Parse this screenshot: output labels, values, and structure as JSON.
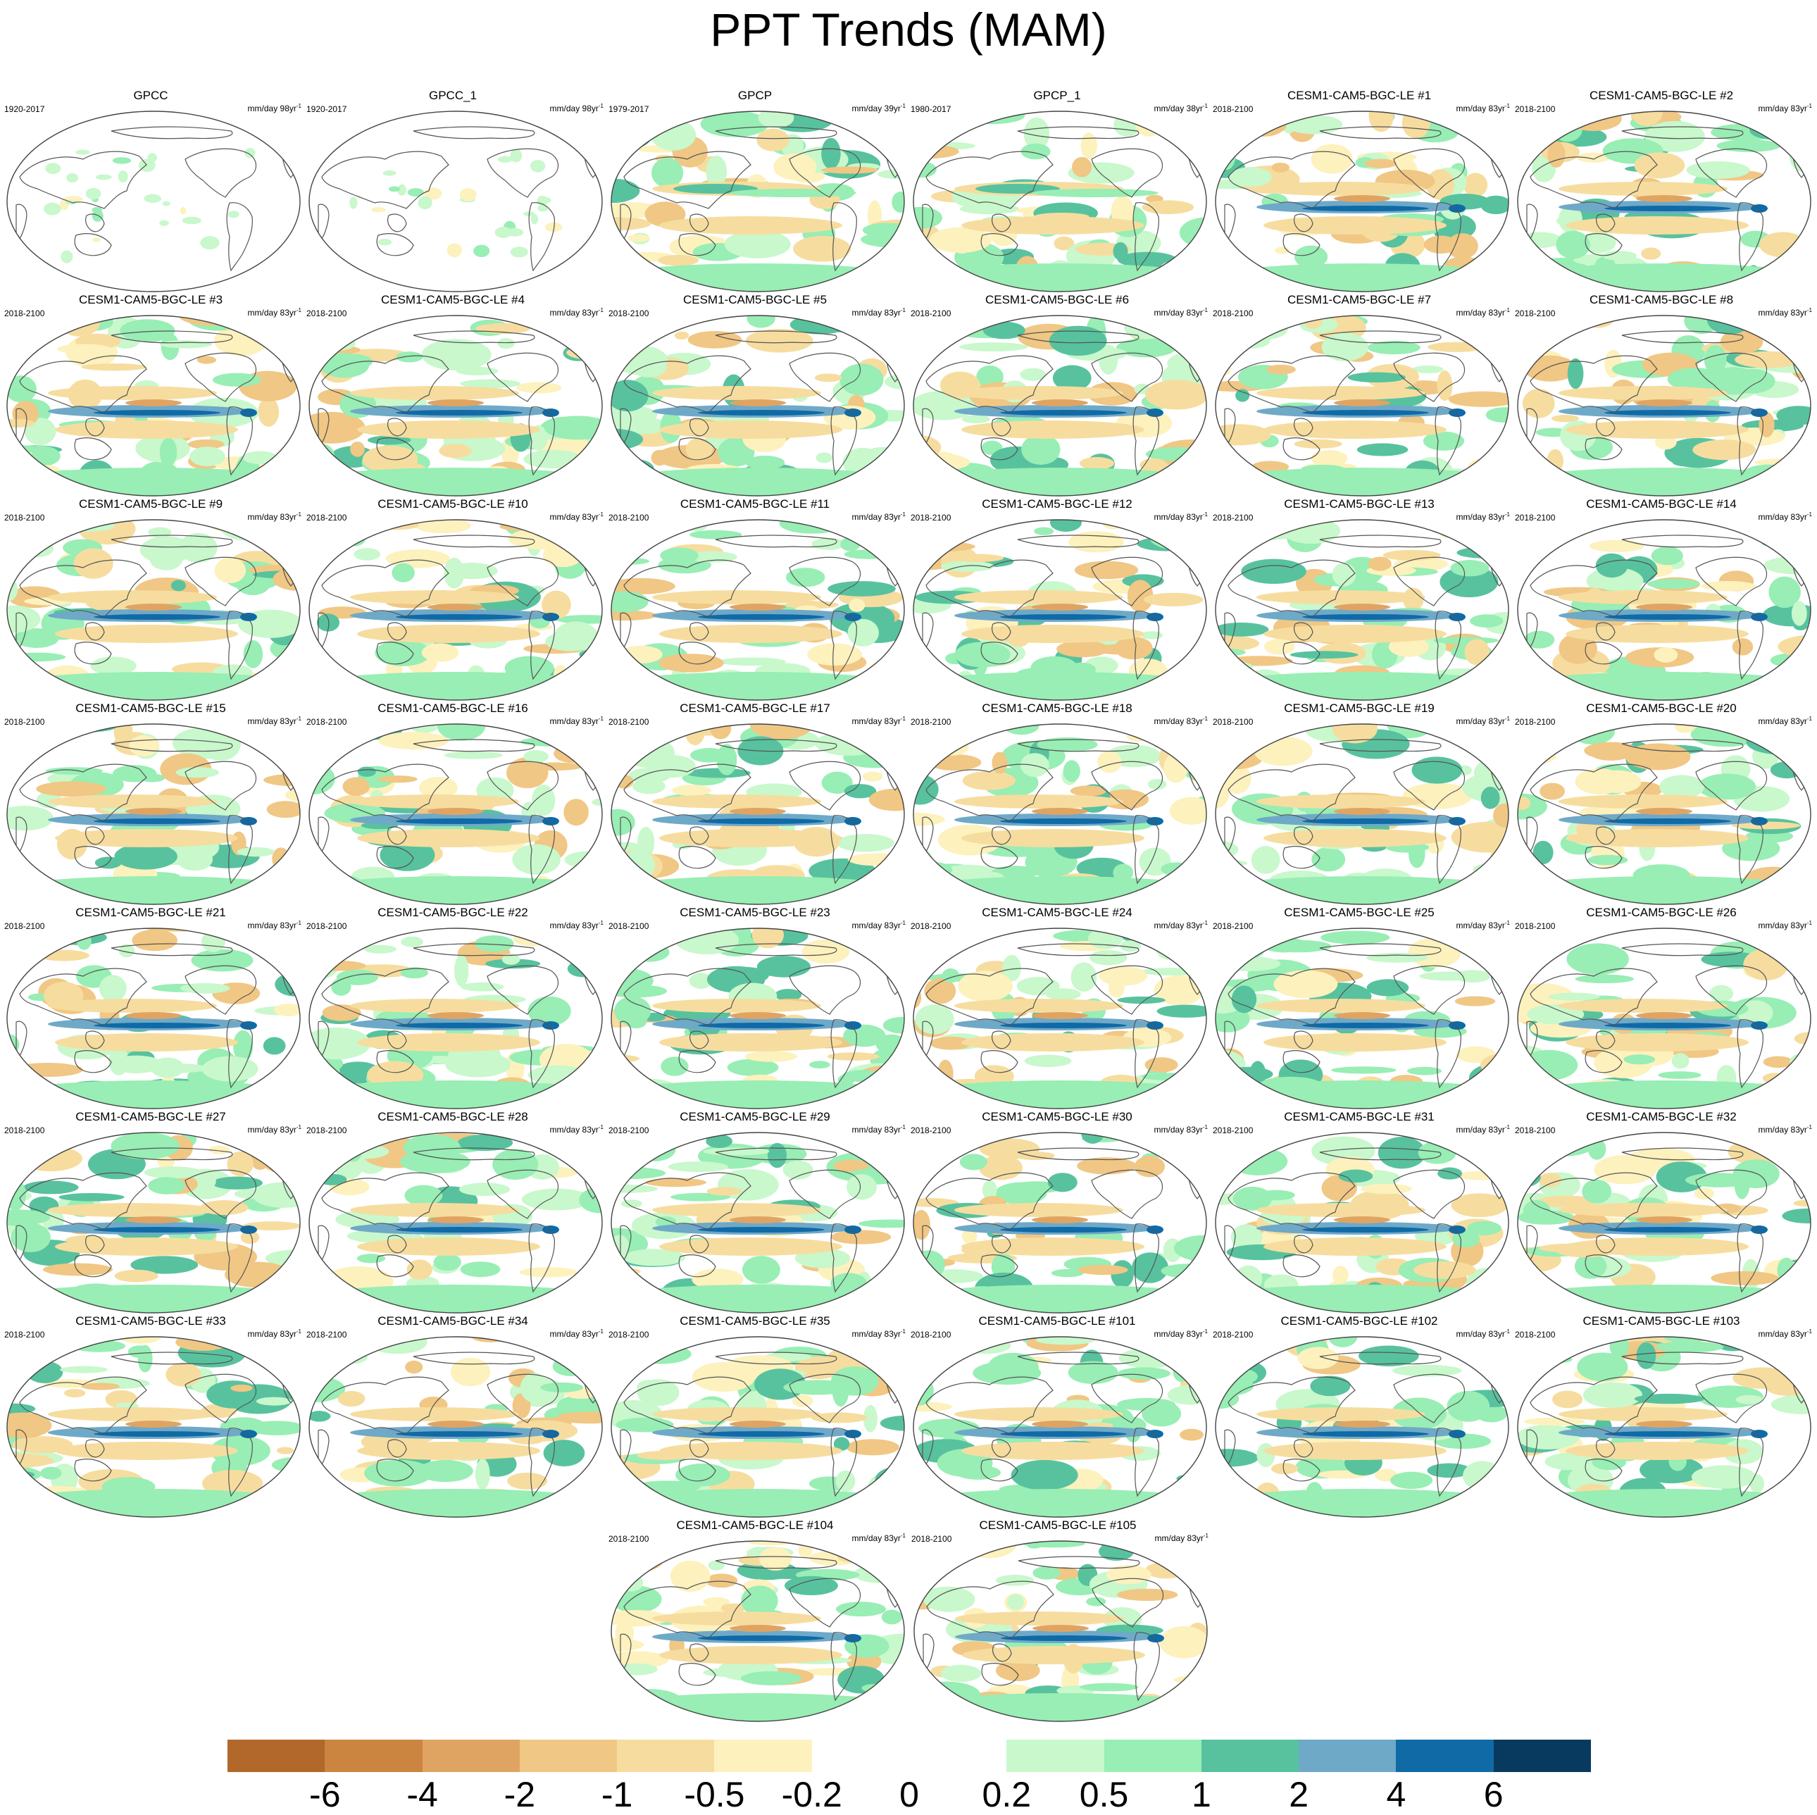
{
  "figure": {
    "title": "PPT Trends (MAM)",
    "colors": {
      "land_outline": "#555555",
      "map_border": "#444444",
      "background": "#ffffff"
    }
  },
  "panels": [
    {
      "name": "GPCC",
      "period": "1920-2017",
      "units": "mm/day 98yr",
      "units_exp": "-1",
      "type": "gauge"
    },
    {
      "name": "GPCC_1",
      "period": "1920-2017",
      "units": "mm/day 98yr",
      "units_exp": "-1",
      "type": "gauge"
    },
    {
      "name": "GPCP",
      "period": "1979-2017",
      "units": "mm/day 39yr",
      "units_exp": "-1",
      "type": "satellite"
    },
    {
      "name": "GPCP_1",
      "period": "1980-2017",
      "units": "mm/day 38yr",
      "units_exp": "-1",
      "type": "satellite"
    },
    {
      "name": "CESM1-CAM5-BGC-LE #1",
      "period": "2018-2100",
      "units": "mm/day 83yr",
      "units_exp": "-1",
      "type": "model"
    },
    {
      "name": "CESM1-CAM5-BGC-LE #2",
      "period": "2018-2100",
      "units": "mm/day 83yr",
      "units_exp": "-1",
      "type": "model"
    },
    {
      "name": "CESM1-CAM5-BGC-LE #3",
      "period": "2018-2100",
      "units": "mm/day 83yr",
      "units_exp": "-1",
      "type": "model"
    },
    {
      "name": "CESM1-CAM5-BGC-LE #4",
      "period": "2018-2100",
      "units": "mm/day 83yr",
      "units_exp": "-1",
      "type": "model"
    },
    {
      "name": "CESM1-CAM5-BGC-LE #5",
      "period": "2018-2100",
      "units": "mm/day 83yr",
      "units_exp": "-1",
      "type": "model"
    },
    {
      "name": "CESM1-CAM5-BGC-LE #6",
      "period": "2018-2100",
      "units": "mm/day 83yr",
      "units_exp": "-1",
      "type": "model"
    },
    {
      "name": "CESM1-CAM5-BGC-LE #7",
      "period": "2018-2100",
      "units": "mm/day 83yr",
      "units_exp": "-1",
      "type": "model"
    },
    {
      "name": "CESM1-CAM5-BGC-LE #8",
      "period": "2018-2100",
      "units": "mm/day 83yr",
      "units_exp": "-1",
      "type": "model"
    },
    {
      "name": "CESM1-CAM5-BGC-LE #9",
      "period": "2018-2100",
      "units": "mm/day 83yr",
      "units_exp": "-1",
      "type": "model"
    },
    {
      "name": "CESM1-CAM5-BGC-LE #10",
      "period": "2018-2100",
      "units": "mm/day 83yr",
      "units_exp": "-1",
      "type": "model"
    },
    {
      "name": "CESM1-CAM5-BGC-LE #11",
      "period": "2018-2100",
      "units": "mm/day 83yr",
      "units_exp": "-1",
      "type": "model"
    },
    {
      "name": "CESM1-CAM5-BGC-LE #12",
      "period": "2018-2100",
      "units": "mm/day 83yr",
      "units_exp": "-1",
      "type": "model"
    },
    {
      "name": "CESM1-CAM5-BGC-LE #13",
      "period": "2018-2100",
      "units": "mm/day 83yr",
      "units_exp": "-1",
      "type": "model"
    },
    {
      "name": "CESM1-CAM5-BGC-LE #14",
      "period": "2018-2100",
      "units": "mm/day 83yr",
      "units_exp": "-1",
      "type": "model"
    },
    {
      "name": "CESM1-CAM5-BGC-LE #15",
      "period": "2018-2100",
      "units": "mm/day 83yr",
      "units_exp": "-1",
      "type": "model"
    },
    {
      "name": "CESM1-CAM5-BGC-LE #16",
      "period": "2018-2100",
      "units": "mm/day 83yr",
      "units_exp": "-1",
      "type": "model"
    },
    {
      "name": "CESM1-CAM5-BGC-LE #17",
      "period": "2018-2100",
      "units": "mm/day 83yr",
      "units_exp": "-1",
      "type": "model"
    },
    {
      "name": "CESM1-CAM5-BGC-LE #18",
      "period": "2018-2100",
      "units": "mm/day 83yr",
      "units_exp": "-1",
      "type": "model"
    },
    {
      "name": "CESM1-CAM5-BGC-LE #19",
      "period": "2018-2100",
      "units": "mm/day 83yr",
      "units_exp": "-1",
      "type": "model"
    },
    {
      "name": "CESM1-CAM5-BGC-LE #20",
      "period": "2018-2100",
      "units": "mm/day 83yr",
      "units_exp": "-1",
      "type": "model"
    },
    {
      "name": "CESM1-CAM5-BGC-LE #21",
      "period": "2018-2100",
      "units": "mm/day 83yr",
      "units_exp": "-1",
      "type": "model"
    },
    {
      "name": "CESM1-CAM5-BGC-LE #22",
      "period": "2018-2100",
      "units": "mm/day 83yr",
      "units_exp": "-1",
      "type": "model"
    },
    {
      "name": "CESM1-CAM5-BGC-LE #23",
      "period": "2018-2100",
      "units": "mm/day 83yr",
      "units_exp": "-1",
      "type": "model"
    },
    {
      "name": "CESM1-CAM5-BGC-LE #24",
      "period": "2018-2100",
      "units": "mm/day 83yr",
      "units_exp": "-1",
      "type": "model"
    },
    {
      "name": "CESM1-CAM5-BGC-LE #25",
      "period": "2018-2100",
      "units": "mm/day 83yr",
      "units_exp": "-1",
      "type": "model"
    },
    {
      "name": "CESM1-CAM5-BGC-LE #26",
      "period": "2018-2100",
      "units": "mm/day 83yr",
      "units_exp": "-1",
      "type": "model"
    },
    {
      "name": "CESM1-CAM5-BGC-LE #27",
      "period": "2018-2100",
      "units": "mm/day 83yr",
      "units_exp": "-1",
      "type": "model"
    },
    {
      "name": "CESM1-CAM5-BGC-LE #28",
      "period": "2018-2100",
      "units": "mm/day 83yr",
      "units_exp": "-1",
      "type": "model"
    },
    {
      "name": "CESM1-CAM5-BGC-LE #29",
      "period": "2018-2100",
      "units": "mm/day 83yr",
      "units_exp": "-1",
      "type": "model"
    },
    {
      "name": "CESM1-CAM5-BGC-LE #30",
      "period": "2018-2100",
      "units": "mm/day 83yr",
      "units_exp": "-1",
      "type": "model"
    },
    {
      "name": "CESM1-CAM5-BGC-LE #31",
      "period": "2018-2100",
      "units": "mm/day 83yr",
      "units_exp": "-1",
      "type": "model"
    },
    {
      "name": "CESM1-CAM5-BGC-LE #32",
      "period": "2018-2100",
      "units": "mm/day 83yr",
      "units_exp": "-1",
      "type": "model"
    },
    {
      "name": "CESM1-CAM5-BGC-LE #33",
      "period": "2018-2100",
      "units": "mm/day 83yr",
      "units_exp": "-1",
      "type": "model"
    },
    {
      "name": "CESM1-CAM5-BGC-LE #34",
      "period": "2018-2100",
      "units": "mm/day 83yr",
      "units_exp": "-1",
      "type": "model"
    },
    {
      "name": "CESM1-CAM5-BGC-LE #35",
      "period": "2018-2100",
      "units": "mm/day 83yr",
      "units_exp": "-1",
      "type": "model"
    },
    {
      "name": "CESM1-CAM5-BGC-LE #101",
      "period": "2018-2100",
      "units": "mm/day 83yr",
      "units_exp": "-1",
      "type": "model"
    },
    {
      "name": "CESM1-CAM5-BGC-LE #102",
      "period": "2018-2100",
      "units": "mm/day 83yr",
      "units_exp": "-1",
      "type": "model"
    },
    {
      "name": "CESM1-CAM5-BGC-LE #103",
      "period": "2018-2100",
      "units": "mm/day 83yr",
      "units_exp": "-1",
      "type": "model"
    },
    {
      "name": "CESM1-CAM5-BGC-LE #104",
      "period": "2018-2100",
      "units": "mm/day 83yr",
      "units_exp": "-1",
      "type": "model"
    },
    {
      "name": "CESM1-CAM5-BGC-LE #105",
      "period": "2018-2100",
      "units": "mm/day 83yr",
      "units_exp": "-1",
      "type": "model"
    }
  ],
  "colorbar": {
    "colors": [
      "#b2682a",
      "#cb8540",
      "#e0a462",
      "#f0c784",
      "#f6dd9f",
      "#fdf1bd",
      "#ffffff",
      "#ffffff",
      "#c8f8cc",
      "#98eeb4",
      "#58c29e",
      "#6fa9c8",
      "#0f6aa6",
      "#073a5e"
    ],
    "labels": [
      "-6",
      "-4",
      "-2",
      "-1",
      "-0.5",
      "-0.2",
      "0",
      "0.2",
      "0.5",
      "1",
      "2",
      "4",
      "6"
    ]
  }
}
